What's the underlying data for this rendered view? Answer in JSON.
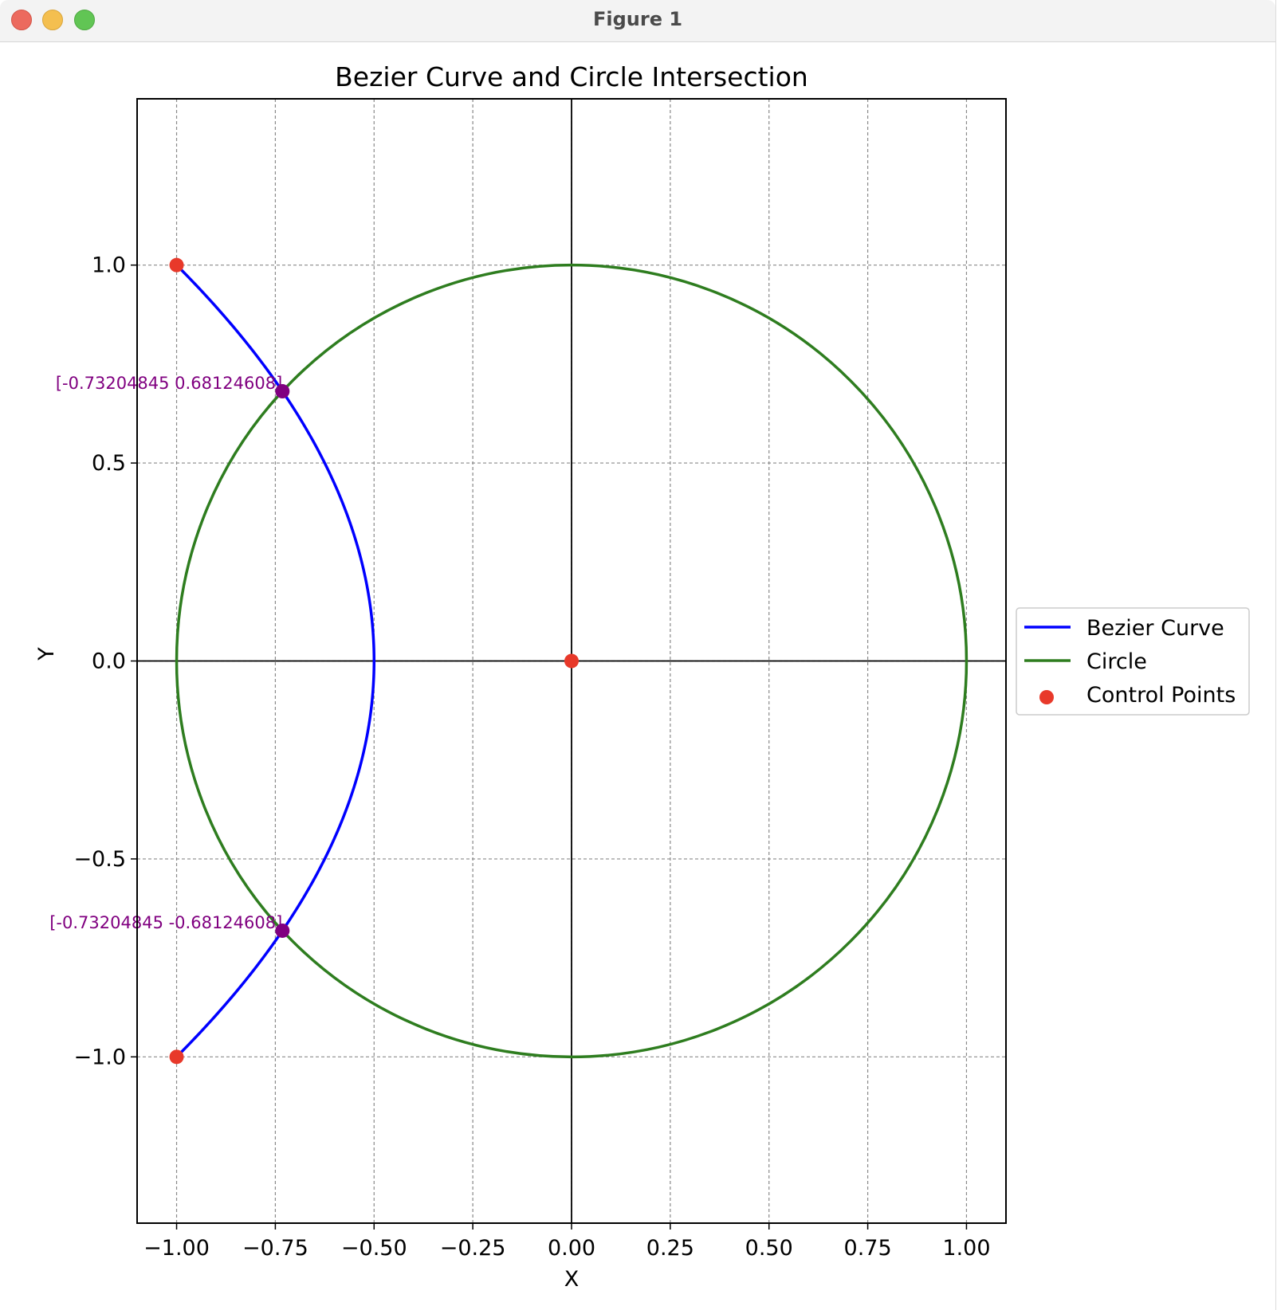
{
  "window": {
    "title": "Figure 1"
  },
  "chart_data": {
    "type": "line",
    "title": "Bezier Curve and Circle Intersection",
    "xlabel": "X",
    "ylabel": "Y",
    "xlim": [
      -1.1,
      1.1
    ],
    "ylim": [
      -1.42,
      1.42
    ],
    "xticks": [
      "−1.00",
      "−0.75",
      "−0.50",
      "−0.25",
      "0.00",
      "0.25",
      "0.50",
      "0.75",
      "1.00"
    ],
    "xtick_values": [
      -1.0,
      -0.75,
      -0.5,
      -0.25,
      0.0,
      0.25,
      0.5,
      0.75,
      1.0
    ],
    "yticks": [
      "1.0",
      "0.5",
      "0.0",
      "−0.5",
      "−1.0"
    ],
    "ytick_values": [
      1.0,
      0.5,
      0.0,
      -0.5,
      -1.0
    ],
    "grid": true,
    "legend_position": "center-left outside right",
    "series": [
      {
        "name": "Bezier Curve",
        "kind": "quadratic-bezier",
        "control_points": [
          [
            -1,
            1
          ],
          [
            0,
            0
          ],
          [
            -1,
            -1
          ]
        ],
        "color": "#0000ff"
      },
      {
        "name": "Circle",
        "kind": "circle",
        "center": [
          0,
          0
        ],
        "radius": 1,
        "color": "#2e7d1f"
      },
      {
        "name": "Control Points",
        "kind": "scatter",
        "points": [
          [
            -1,
            1
          ],
          [
            0,
            0
          ],
          [
            -1,
            -1
          ]
        ],
        "color": "#e8392a"
      }
    ],
    "intersections": [
      {
        "x": -0.73204845,
        "y": 0.68124608,
        "label": "[-0.73204845  0.68124608]",
        "color": "#800080"
      },
      {
        "x": -0.73204845,
        "y": -0.68124608,
        "label": "[-0.73204845 -0.68124608]",
        "color": "#800080"
      }
    ],
    "axis_lines": {
      "x0": 0,
      "y0": 0
    }
  }
}
